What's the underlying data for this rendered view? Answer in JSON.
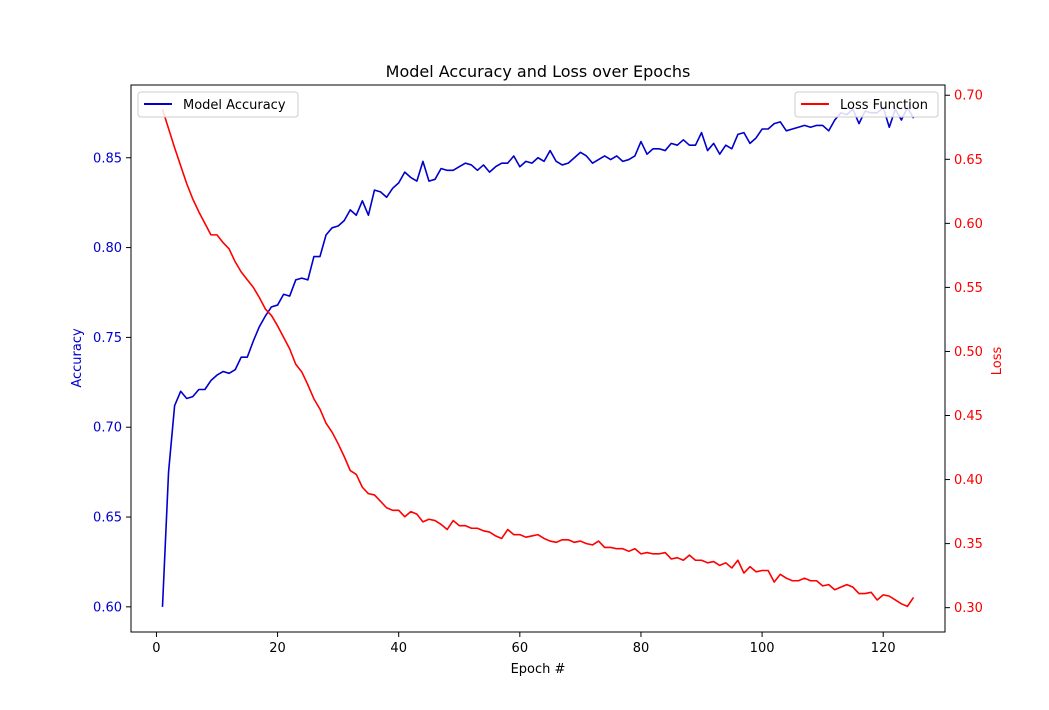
{
  "chart_data": {
    "type": "line",
    "title": "Model Accuracy and Loss over Epochs",
    "xlabel": "Epoch #",
    "ylabel_left": "Accuracy",
    "ylabel_right": "Loss",
    "xlim": [
      -4.2,
      130.2
    ],
    "ylim_left": [
      0.586,
      0.8905
    ],
    "ylim_right": [
      0.281,
      0.708
    ],
    "x_ticks": [
      0,
      20,
      40,
      60,
      80,
      100,
      120
    ],
    "y_ticks_left": [
      0.6,
      0.65,
      0.7,
      0.75,
      0.8,
      0.85
    ],
    "y_ticks_right": [
      0.3,
      0.35,
      0.4,
      0.45,
      0.5,
      0.55,
      0.6,
      0.65,
      0.7
    ],
    "y_tick_labels_left": [
      "0.60",
      "0.65",
      "0.70",
      "0.75",
      "0.80",
      "0.85"
    ],
    "y_tick_labels_right": [
      "0.30",
      "0.35",
      "0.40",
      "0.45",
      "0.50",
      "0.55",
      "0.60",
      "0.65",
      "0.70"
    ],
    "grid": false,
    "legend_left": "upper-left",
    "legend_right": "upper-right",
    "x": [
      1,
      2,
      3,
      4,
      5,
      6,
      7,
      8,
      9,
      10,
      11,
      12,
      13,
      14,
      15,
      16,
      17,
      18,
      19,
      20,
      21,
      22,
      23,
      24,
      25,
      26,
      27,
      28,
      29,
      30,
      31,
      32,
      33,
      34,
      35,
      36,
      37,
      38,
      39,
      40,
      41,
      42,
      43,
      44,
      45,
      46,
      47,
      48,
      49,
      50,
      51,
      52,
      53,
      54,
      55,
      56,
      57,
      58,
      59,
      60,
      61,
      62,
      63,
      64,
      65,
      66,
      67,
      68,
      69,
      70,
      71,
      72,
      73,
      74,
      75,
      76,
      77,
      78,
      79,
      80,
      81,
      82,
      83,
      84,
      85,
      86,
      87,
      88,
      89,
      90,
      91,
      92,
      93,
      94,
      95,
      96,
      97,
      98,
      99,
      100,
      101,
      102,
      103,
      104,
      105,
      106,
      107,
      108,
      109,
      110,
      111,
      112,
      113,
      114,
      115,
      116,
      117,
      118,
      119,
      120,
      121,
      122,
      123,
      124,
      125
    ],
    "series": [
      {
        "name": "Model Accuracy",
        "axis": "left",
        "color": "#0000cc",
        "values": [
          0.6,
          0.675,
          0.712,
          0.72,
          0.716,
          0.717,
          0.721,
          0.721,
          0.726,
          0.729,
          0.731,
          0.73,
          0.732,
          0.739,
          0.739,
          0.748,
          0.756,
          0.762,
          0.767,
          0.768,
          0.774,
          0.773,
          0.782,
          0.783,
          0.782,
          0.795,
          0.795,
          0.807,
          0.811,
          0.812,
          0.815,
          0.821,
          0.818,
          0.826,
          0.818,
          0.832,
          0.831,
          0.828,
          0.833,
          0.836,
          0.842,
          0.839,
          0.837,
          0.848,
          0.837,
          0.838,
          0.844,
          0.843,
          0.843,
          0.845,
          0.847,
          0.846,
          0.843,
          0.846,
          0.842,
          0.845,
          0.847,
          0.847,
          0.851,
          0.845,
          0.848,
          0.847,
          0.85,
          0.848,
          0.854,
          0.848,
          0.846,
          0.847,
          0.85,
          0.853,
          0.851,
          0.847,
          0.849,
          0.851,
          0.849,
          0.851,
          0.848,
          0.849,
          0.851,
          0.859,
          0.852,
          0.855,
          0.855,
          0.854,
          0.858,
          0.857,
          0.86,
          0.857,
          0.857,
          0.864,
          0.854,
          0.858,
          0.852,
          0.857,
          0.855,
          0.863,
          0.864,
          0.858,
          0.861,
          0.866,
          0.866,
          0.869,
          0.87,
          0.865,
          0.866,
          0.867,
          0.868,
          0.867,
          0.868,
          0.868,
          0.865,
          0.871,
          0.875,
          0.874,
          0.877,
          0.869,
          0.876,
          0.875,
          0.875,
          0.878,
          0.867,
          0.877,
          0.871,
          0.878,
          0.872
        ]
      },
      {
        "name": "Loss Function",
        "axis": "right",
        "color": "#ff0000",
        "values": [
          0.689,
          0.674,
          0.659,
          0.645,
          0.631,
          0.619,
          0.609,
          0.6,
          0.591,
          0.591,
          0.585,
          0.58,
          0.57,
          0.562,
          0.556,
          0.55,
          0.542,
          0.533,
          0.528,
          0.52,
          0.511,
          0.502,
          0.49,
          0.484,
          0.474,
          0.463,
          0.455,
          0.444,
          0.437,
          0.428,
          0.418,
          0.407,
          0.404,
          0.394,
          0.389,
          0.388,
          0.383,
          0.378,
          0.376,
          0.376,
          0.371,
          0.375,
          0.373,
          0.367,
          0.369,
          0.368,
          0.365,
          0.361,
          0.368,
          0.364,
          0.364,
          0.362,
          0.362,
          0.36,
          0.359,
          0.356,
          0.354,
          0.361,
          0.357,
          0.357,
          0.355,
          0.356,
          0.357,
          0.354,
          0.352,
          0.351,
          0.353,
          0.353,
          0.351,
          0.352,
          0.35,
          0.349,
          0.352,
          0.347,
          0.347,
          0.346,
          0.346,
          0.344,
          0.346,
          0.342,
          0.343,
          0.342,
          0.342,
          0.343,
          0.338,
          0.339,
          0.337,
          0.341,
          0.337,
          0.337,
          0.335,
          0.336,
          0.333,
          0.335,
          0.331,
          0.337,
          0.327,
          0.332,
          0.328,
          0.329,
          0.329,
          0.32,
          0.326,
          0.323,
          0.321,
          0.321,
          0.323,
          0.321,
          0.321,
          0.317,
          0.318,
          0.314,
          0.316,
          0.318,
          0.316,
          0.311,
          0.311,
          0.312,
          0.306,
          0.31,
          0.309,
          0.306,
          0.303,
          0.301,
          0.308
        ]
      }
    ]
  }
}
